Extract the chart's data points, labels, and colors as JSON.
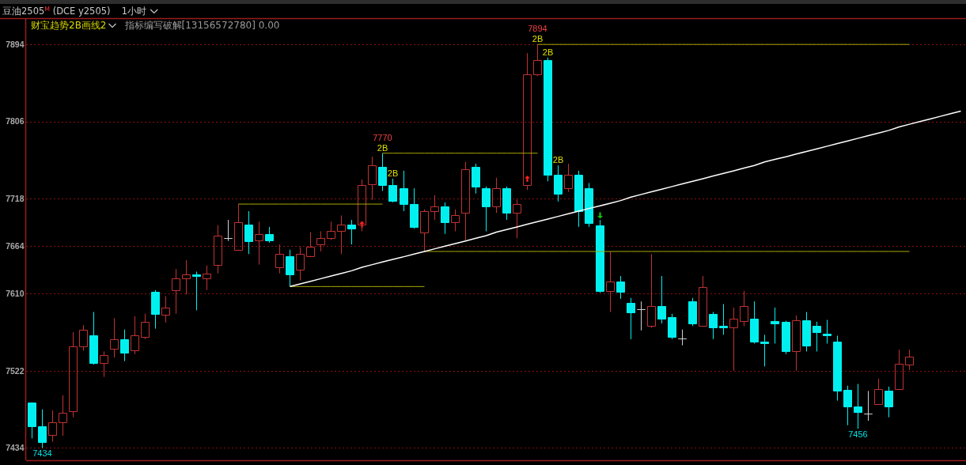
{
  "chart_data": {
    "type": "candlestick",
    "title": "豆油2505$^{M}$ (DCE y2505)",
    "subtitle": "1小时",
    "annotations": [
      "财宝趋势2B画线2",
      "指标编写破解[13156572780] 0.00",
      {
        "text": "2B",
        "y": 7770
      },
      {
        "text": "2B",
        "y": 7741
      },
      {
        "text": "2B",
        "y": 7894
      },
      {
        "text": "2B",
        "y": 7879
      },
      {
        "text": "2B",
        "y": 7756
      },
      {
        "text": "7770",
        "y": 7770
      },
      {
        "text": "7894",
        "y": 7894
      },
      {
        "text": "7434",
        "y": 7434
      },
      {
        "text": "7456",
        "y": 7456
      }
    ],
    "categories": [
      null,
      null,
      null,
      null,
      null,
      null,
      null,
      null,
      null,
      null,
      null,
      null,
      null,
      null,
      null,
      null,
      null,
      null,
      null,
      null,
      null,
      null,
      null,
      null,
      null,
      null,
      null,
      null,
      null,
      null,
      null,
      null,
      null,
      null,
      null,
      null,
      null,
      null,
      null,
      null,
      null,
      null,
      null,
      null,
      null,
      null,
      null,
      null,
      null,
      null,
      null,
      null,
      null,
      null,
      null,
      null,
      null,
      null,
      null,
      null,
      null,
      null,
      null,
      null,
      null,
      null,
      null,
      null,
      null,
      null,
      null,
      null,
      null,
      null,
      null,
      null,
      null,
      null,
      null,
      null,
      null,
      null,
      null,
      null,
      null,
      null,
      null,
      null,
      null,
      null,
      null
    ],
    "ohlc": [
      [
        7486,
        7486,
        7445,
        7459
      ],
      [
        7459,
        7478,
        7434,
        7441
      ],
      [
        7449,
        7477,
        7441,
        7463
      ],
      [
        7463,
        7494,
        7448,
        7474
      ],
      [
        7476,
        7566,
        7469,
        7550
      ],
      [
        7550,
        7574,
        7545,
        7569
      ],
      [
        7562,
        7589,
        7529,
        7531
      ],
      [
        7531,
        7544,
        7515,
        7540
      ],
      [
        7547,
        7582,
        7537,
        7558
      ],
      [
        7558,
        7569,
        7533,
        7543
      ],
      [
        7545,
        7584,
        7541,
        7562
      ],
      [
        7561,
        7587,
        7558,
        7578
      ],
      [
        7612,
        7614,
        7570,
        7587
      ],
      [
        7586,
        7607,
        7577,
        7594
      ],
      [
        7614,
        7638,
        7587,
        7627
      ],
      [
        7627,
        7648,
        7609,
        7632
      ],
      [
        7632,
        7635,
        7591,
        7630
      ],
      [
        7627,
        7642,
        7614,
        7633
      ],
      [
        7643,
        7688,
        7633,
        7676
      ],
      [
        7673,
        7694,
        7670,
        7673
      ],
      [
        7660,
        7712,
        7660,
        7691
      ],
      [
        7689,
        7704,
        7655,
        7670
      ],
      [
        7671,
        7692,
        7643,
        7678
      ],
      [
        7678,
        7686,
        7668,
        7671
      ],
      [
        7640,
        7666,
        7633,
        7655
      ],
      [
        7653,
        7660,
        7618,
        7632
      ],
      [
        7637,
        7663,
        7625,
        7655
      ],
      [
        7653,
        7680,
        7653,
        7663
      ],
      [
        7666,
        7681,
        7658,
        7673
      ],
      [
        7673,
        7692,
        7671,
        7681
      ],
      [
        7681,
        7699,
        7655,
        7689
      ],
      [
        7689,
        7694,
        7666,
        7684
      ],
      [
        7689,
        7740,
        7681,
        7734
      ],
      [
        7735,
        7766,
        7717,
        7756
      ],
      [
        7754,
        7770,
        7727,
        7734
      ],
      [
        7734,
        7741,
        7714,
        7716
      ],
      [
        7730,
        7750,
        7704,
        7712
      ],
      [
        7712,
        7730,
        7684,
        7686
      ],
      [
        7680,
        7706,
        7658,
        7704
      ],
      [
        7704,
        7722,
        7694,
        7709
      ],
      [
        7709,
        7714,
        7678,
        7691
      ],
      [
        7691,
        7706,
        7681,
        7699
      ],
      [
        7702,
        7760,
        7671,
        7752
      ],
      [
        7754,
        7758,
        7724,
        7732
      ],
      [
        7730,
        7732,
        7681,
        7709
      ],
      [
        7709,
        7742,
        7702,
        7730
      ],
      [
        7730,
        7732,
        7694,
        7702
      ],
      [
        7702,
        7717,
        7673,
        7712
      ],
      [
        7734,
        7884,
        7728,
        7860
      ],
      [
        7860,
        7894,
        7858,
        7876
      ],
      [
        7876,
        7879,
        7738,
        7745
      ],
      [
        7745,
        7756,
        7715,
        7724
      ],
      [
        7730,
        7758,
        7726,
        7745
      ],
      [
        7745,
        7750,
        7686,
        7704
      ],
      [
        7730,
        7736,
        7686,
        7690
      ],
      [
        7688,
        7694,
        7611,
        7613
      ],
      [
        7613,
        7658,
        7589,
        7624
      ],
      [
        7624,
        7630,
        7604,
        7612
      ],
      [
        7599,
        7605,
        7558,
        7589
      ],
      [
        7592,
        7601,
        7568,
        7592
      ],
      [
        7573,
        7655,
        7571,
        7596
      ],
      [
        7596,
        7630,
        7576,
        7581
      ],
      [
        7583,
        7587,
        7558,
        7561
      ],
      [
        7559,
        7569,
        7551,
        7559
      ],
      [
        7601,
        7605,
        7573,
        7576
      ],
      [
        7573,
        7630,
        7573,
        7617
      ],
      [
        7587,
        7589,
        7558,
        7571
      ],
      [
        7573,
        7598,
        7563,
        7571
      ],
      [
        7571,
        7594,
        7522,
        7581
      ],
      [
        7579,
        7613,
        7573,
        7596
      ],
      [
        7581,
        7601,
        7553,
        7555
      ],
      [
        7555,
        7563,
        7527,
        7553
      ],
      [
        7579,
        7594,
        7553,
        7576
      ],
      [
        7578,
        7579,
        7541,
        7544
      ],
      [
        7544,
        7585,
        7522,
        7580
      ],
      [
        7580,
        7589,
        7544,
        7551
      ],
      [
        7573,
        7578,
        7544,
        7566
      ],
      [
        7564,
        7580,
        7553,
        7562
      ],
      [
        7555,
        7562,
        7488,
        7499
      ],
      [
        7500,
        7505,
        7460,
        7481
      ],
      [
        7481,
        7507,
        7456,
        7475
      ],
      [
        7473,
        7499,
        7465,
        7473
      ],
      [
        7484,
        7513,
        7483,
        7501
      ],
      [
        7499,
        7504,
        7469,
        7481
      ],
      [
        7501,
        7546,
        7501,
        7530
      ],
      [
        7529,
        7546,
        7523,
        7538
      ],
      null,
      null,
      null,
      null,
      null
    ],
    "colors": [
      "#00f0f0",
      "#00f0f0",
      "#c03232",
      "#c03232",
      "#c03232",
      "#c03232",
      "#00f0f0",
      "#c03232",
      "#c03232",
      "#00f0f0",
      "#c03232",
      "#c03232",
      "#00f0f0",
      "#c03232",
      "#c03232",
      "#c03232",
      "#00f0f0",
      "#c03232",
      "#c03232",
      "#d0d0d0",
      "#c03232",
      "#00f0f0",
      "#c03232",
      "#00f0f0",
      "#c03232",
      "#00f0f0",
      "#c03232",
      "#c03232",
      "#c03232",
      "#c03232",
      "#c03232",
      "#00f0f0",
      "#c03232",
      "#c03232",
      "#00f0f0",
      "#00f0f0",
      "#00f0f0",
      "#00f0f0",
      "#c03232",
      "#c03232",
      "#00f0f0",
      "#c03232",
      "#c03232",
      "#00f0f0",
      "#00f0f0",
      "#c03232",
      "#00f0f0",
      "#c03232",
      "#c03232",
      "#c03232",
      "#00f0f0",
      "#00f0f0",
      "#c03232",
      "#00f0f0",
      "#00f0f0",
      "#00f0f0",
      "#c03232",
      "#00f0f0",
      "#00f0f0",
      "#d0d0d0",
      "#c03232",
      "#00f0f0",
      "#00f0f0",
      "#d0d0d0",
      "#00f0f0",
      "#c03232",
      "#00f0f0",
      "#00f0f0",
      "#c03232",
      "#c03232",
      "#00f0f0",
      "#00f0f0",
      "#00f0f0",
      "#00f0f0",
      "#c03232",
      "#00f0f0",
      "#00f0f0",
      "#00f0f0",
      "#00f0f0",
      "#00f0f0",
      "#00f0f0",
      "#d0d0d0",
      "#c03232",
      "#00f0f0",
      "#c03232",
      "#c03232",
      null,
      null,
      null,
      null,
      null
    ],
    "ylim": [
      7420,
      7923
    ],
    "yticks": [
      7434,
      7522,
      7610,
      7664,
      7718,
      7806,
      7894
    ],
    "grid": "y",
    "series": [
      {
        "type": "line",
        "color": "#a8a800",
        "values": [
          null,
          null,
          null,
          null,
          null,
          null,
          null,
          null,
          null,
          null,
          null,
          null,
          null,
          null,
          null,
          null,
          null,
          null,
          null,
          null,
          7712,
          7712,
          7712,
          7712,
          7712,
          7712,
          7712,
          7712,
          7712,
          7712,
          7712,
          7712,
          7712,
          7712,
          7712,
          null,
          null,
          null,
          null,
          null,
          null,
          null,
          null,
          null,
          null,
          null,
          null,
          null,
          null,
          null,
          null,
          null,
          null,
          null,
          null,
          null,
          null,
          null,
          null,
          null,
          null,
          null,
          null,
          null,
          null,
          null,
          null,
          null,
          null,
          null,
          null,
          null,
          null,
          null,
          null,
          null,
          null,
          null,
          null,
          null,
          null,
          null,
          null,
          null,
          null,
          null,
          null,
          null,
          null,
          null,
          null
        ]
      },
      {
        "type": "line",
        "color": "#a8a800",
        "values": [
          null,
          null,
          null,
          null,
          null,
          null,
          null,
          null,
          null,
          null,
          null,
          null,
          null,
          null,
          null,
          null,
          null,
          null,
          null,
          null,
          null,
          null,
          null,
          null,
          null,
          7618,
          7618,
          7618,
          7618,
          7618,
          7618,
          7618,
          7618,
          7618,
          7618,
          7618,
          7618,
          7618,
          7618,
          null,
          null,
          null,
          null,
          null,
          null,
          null,
          null,
          null,
          null,
          null,
          null,
          null,
          null,
          null,
          null,
          null,
          null,
          null,
          null,
          null,
          null,
          null,
          null,
          null,
          null,
          null,
          null,
          null,
          null,
          null,
          null,
          null,
          null,
          null,
          null,
          null,
          null,
          null,
          null,
          null,
          null,
          null,
          null,
          null,
          null,
          null,
          null,
          null,
          null,
          null,
          null
        ]
      },
      {
        "type": "line",
        "color": "#a8a800",
        "values": [
          null,
          null,
          null,
          null,
          null,
          null,
          null,
          null,
          null,
          null,
          null,
          null,
          null,
          null,
          null,
          null,
          null,
          null,
          null,
          null,
          null,
          null,
          null,
          null,
          null,
          null,
          null,
          null,
          null,
          null,
          null,
          null,
          null,
          null,
          7770,
          7770,
          7770,
          7770,
          7770,
          7770,
          7770,
          7770,
          7770,
          7770,
          7770,
          7770,
          7770,
          7770,
          7770,
          7770,
          null,
          null,
          null,
          null,
          null,
          null,
          null,
          null,
          null,
          null,
          null,
          null,
          null,
          null,
          null,
          null,
          null,
          null,
          null,
          null,
          null,
          null,
          null,
          null,
          null,
          null,
          null,
          null,
          null,
          null,
          null,
          null,
          null,
          null,
          null,
          null,
          null,
          null,
          null,
          null,
          null
        ]
      },
      {
        "type": "line",
        "color": "#a8a800",
        "values": [
          null,
          null,
          null,
          null,
          null,
          null,
          null,
          null,
          null,
          null,
          null,
          null,
          null,
          null,
          null,
          null,
          null,
          null,
          null,
          null,
          null,
          null,
          null,
          null,
          null,
          null,
          null,
          null,
          null,
          null,
          null,
          null,
          null,
          null,
          null,
          null,
          null,
          null,
          7658,
          7658,
          7658,
          7658,
          7658,
          7658,
          7658,
          7658,
          7658,
          7658,
          7658,
          7658,
          7658,
          7658,
          7658,
          7658,
          7658,
          7658,
          7658,
          7658,
          7658,
          7658,
          7658,
          7658,
          7658,
          7658,
          7658,
          7658,
          7658,
          7658,
          7658,
          7658,
          7658,
          7658,
          7658,
          7658,
          7658,
          7658,
          7658,
          7658,
          7658,
          7658,
          7658,
          7658,
          7658,
          7658,
          7658,
          7658,
          null,
          null,
          null,
          null,
          null
        ]
      },
      {
        "type": "line",
        "color": "#a8a800",
        "values": [
          null,
          null,
          null,
          null,
          null,
          null,
          null,
          null,
          null,
          null,
          null,
          null,
          null,
          null,
          null,
          null,
          null,
          null,
          null,
          null,
          null,
          null,
          null,
          null,
          null,
          null,
          null,
          null,
          null,
          null,
          null,
          null,
          null,
          null,
          null,
          null,
          null,
          null,
          null,
          null,
          null,
          null,
          null,
          null,
          null,
          null,
          null,
          null,
          null,
          7894,
          7894,
          7894,
          7894,
          7894,
          7894,
          7894,
          7894,
          7894,
          7894,
          7894,
          7894,
          7894,
          7894,
          7894,
          7894,
          7894,
          7894,
          7894,
          7894,
          7894,
          7894,
          7894,
          7894,
          7894,
          7894,
          7894,
          7894,
          7894,
          7894,
          7894,
          7894,
          7894,
          7894,
          7894,
          7894,
          7894,
          null,
          null,
          null,
          null,
          null
        ]
      },
      {
        "type": "line",
        "color": "#ffffff",
        "values": [
          null,
          null,
          null,
          null,
          null,
          null,
          null,
          null,
          null,
          null,
          null,
          null,
          null,
          null,
          null,
          null,
          null,
          null,
          null,
          null,
          null,
          null,
          null,
          null,
          null,
          7618,
          7621,
          7624,
          7627,
          7630,
          7633,
          7636,
          7640,
          7643,
          7646,
          7649,
          7652,
          7655,
          7658,
          7661,
          7664,
          7667,
          7670,
          7673,
          7676,
          7680,
          7683,
          7686,
          7689,
          7692,
          7695,
          7698,
          7701,
          7704,
          7707,
          7710,
          7713,
          7716,
          7720,
          7723,
          7726,
          7729,
          7732,
          7735,
          7738,
          7741,
          7744,
          7747,
          7750,
          7753,
          7756,
          7760,
          7763,
          7766,
          7769,
          7772,
          7775,
          7778,
          7781,
          7784,
          7787,
          7790,
          7793,
          7796,
          7800,
          7803,
          7806,
          7809,
          7812,
          7815,
          7818
        ]
      },
      {
        "type": "scatter",
        "color": "#ff2020",
        "marker": "triangle",
        "values": [
          null,
          null,
          null,
          null,
          null,
          null,
          null,
          null,
          null,
          null,
          null,
          null,
          null,
          null,
          null,
          null,
          null,
          null,
          null,
          null,
          null,
          null,
          null,
          null,
          null,
          null,
          null,
          null,
          null,
          null,
          null,
          null,
          7689,
          null,
          null,
          null,
          null,
          null,
          null,
          null,
          null,
          null,
          null,
          null,
          null,
          null,
          null,
          null,
          7741,
          null,
          null,
          null,
          null,
          null,
          null,
          null,
          null,
          null,
          null,
          null,
          null,
          null,
          null,
          null,
          null,
          null,
          null,
          null,
          null,
          null,
          null,
          null,
          null,
          null,
          null,
          null,
          null,
          null,
          null,
          null,
          null,
          null,
          null,
          null,
          null,
          null,
          null,
          null,
          null,
          null,
          null
        ]
      },
      {
        "type": "scatter",
        "color": "#10c010",
        "marker": "triangle",
        "values": [
          null,
          null,
          null,
          null,
          null,
          null,
          null,
          null,
          null,
          null,
          null,
          null,
          null,
          null,
          null,
          null,
          null,
          null,
          null,
          null,
          null,
          null,
          null,
          null,
          null,
          null,
          null,
          null,
          null,
          null,
          null,
          null,
          null,
          null,
          null,
          null,
          null,
          null,
          null,
          null,
          null,
          null,
          null,
          null,
          null,
          null,
          null,
          null,
          null,
          null,
          null,
          null,
          null,
          null,
          null,
          7699,
          null,
          null,
          null,
          null,
          null,
          null,
          null,
          null,
          null,
          null,
          null,
          null,
          null,
          null,
          null,
          null,
          null,
          null,
          null,
          null,
          null,
          null,
          null,
          null,
          null,
          null,
          null,
          null,
          null,
          null,
          null,
          null,
          null,
          null,
          null
        ]
      }
    ]
  }
}
